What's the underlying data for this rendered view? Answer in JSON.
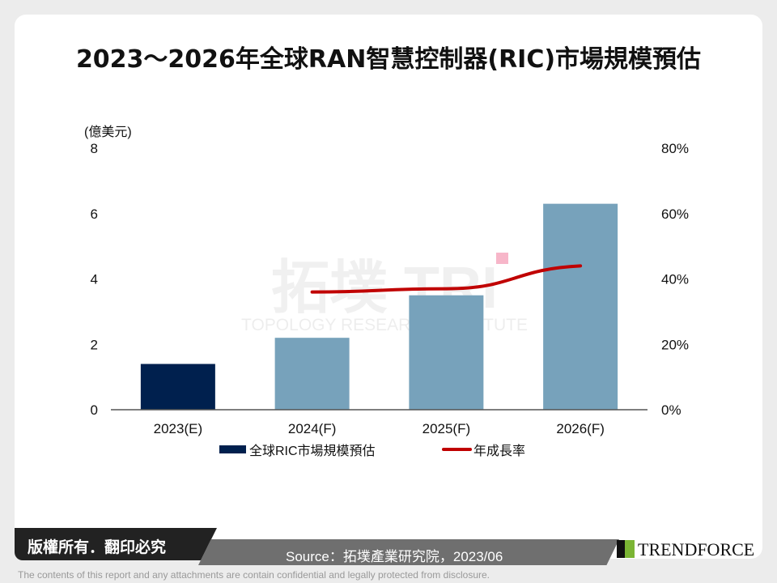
{
  "title": "2023～2026年全球RAN智慧控制器(RIC)市場規模預估",
  "chart_data": {
    "type": "bar",
    "categories": [
      "2023(E)",
      "2024(F)",
      "2025(F)",
      "2026(F)"
    ],
    "series": [
      {
        "name": "全球RIC市場規模預估",
        "type": "bar",
        "values": [
          1.4,
          2.2,
          3.5,
          6.3
        ],
        "colors": [
          "#00204e",
          "#77a2bb",
          "#77a2bb",
          "#77a2bb"
        ]
      },
      {
        "name": "年成長率",
        "type": "line",
        "axis": "right",
        "values": [
          null,
          36,
          37,
          44
        ],
        "color": "#c00000"
      }
    ],
    "ylabel": "(億美元)",
    "ylim": [
      0,
      8
    ],
    "yticks": [
      "0",
      "2",
      "4",
      "6",
      "8"
    ],
    "y2lim": [
      0,
      80
    ],
    "y2ticks": [
      "0%",
      "20%",
      "40%",
      "60%",
      "80%"
    ],
    "legend": "bottom",
    "grid": false
  },
  "watermark": {
    "cn": "拓墣",
    "en": "TOPOLOGY RESEARCH INSTITUTE"
  },
  "footer": {
    "copyright": "版權所有．翻印必究",
    "source": "Source：拓墣產業研究院，2023/06",
    "logo": "TRENDFORCE",
    "disclaimer": "The contents of this report and any attachments are contain confidential and legally protected from disclosure."
  }
}
